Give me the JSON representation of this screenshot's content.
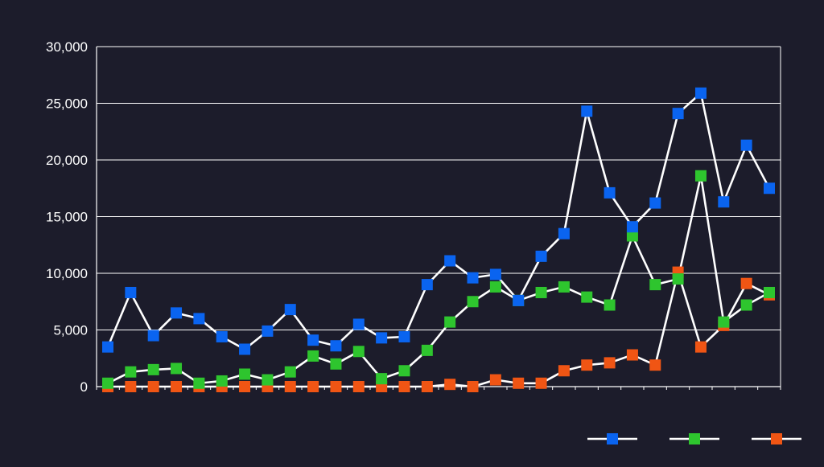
{
  "theme": {
    "background": "#1c1c2b",
    "axis_color": "#ffffff",
    "grid_color": "#ffffff",
    "line_color": "#ffffff",
    "tick_text_color": "#ffffff"
  },
  "chart_data": {
    "type": "line",
    "title": "",
    "xlabel": "",
    "ylabel": "",
    "ylim": [
      0,
      30000
    ],
    "yticks": [
      0,
      5000,
      10000,
      15000,
      20000,
      25000,
      30000
    ],
    "ytick_labels": [
      "0",
      "5,000",
      "10,000",
      "15,000",
      "20,000",
      "25,000",
      "30,000"
    ],
    "grid": true,
    "legend_position": "bottom-right",
    "x": [
      1,
      2,
      3,
      4,
      5,
      6,
      7,
      8,
      9,
      10,
      11,
      12,
      13,
      14,
      15,
      16,
      17,
      18,
      19,
      20,
      21,
      22,
      23,
      24,
      25,
      26,
      27,
      28,
      29,
      30
    ],
    "series": [
      {
        "color": "#0a64f0",
        "marker": "square",
        "values": [
          3500,
          8300,
          4500,
          6500,
          6000,
          4400,
          3300,
          4900,
          6800,
          4100,
          3600,
          5500,
          4300,
          4400,
          9000,
          11100,
          9600,
          9900,
          7600,
          11500,
          13500,
          24300,
          17100,
          14100,
          16200,
          24100,
          25900,
          16300,
          21300,
          17500
        ]
      },
      {
        "color": "#2ec52e",
        "marker": "square",
        "values": [
          300,
          1300,
          1500,
          1600,
          300,
          500,
          1100,
          600,
          1300,
          2700,
          2000,
          3100,
          700,
          1400,
          3200,
          5700,
          7500,
          8800,
          7600,
          8300,
          8800,
          7900,
          7200,
          13300,
          9000,
          9500,
          18600,
          5700,
          7200,
          8300
        ]
      },
      {
        "color": "#f05514",
        "marker": "square",
        "values": [
          0,
          0,
          0,
          0,
          0,
          0,
          0,
          0,
          0,
          0,
          0,
          0,
          0,
          0,
          0,
          200,
          0,
          600,
          300,
          300,
          1400,
          1900,
          2100,
          2800,
          1900,
          10100,
          3500,
          5400,
          9100,
          8100
        ]
      }
    ]
  }
}
